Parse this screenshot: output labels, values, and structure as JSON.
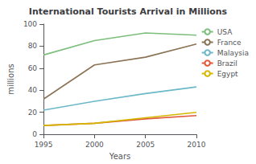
{
  "chart_data": {
    "type": "line",
    "title": "International Tourists Arrival in Millions",
    "xlabel": "Years",
    "ylabel": "millions",
    "x": [
      1995,
      2000,
      2005,
      2010
    ],
    "series": [
      {
        "name": "USA",
        "color": "#7CBE7C",
        "values": [
          72,
          85,
          92,
          90
        ]
      },
      {
        "name": "France",
        "color": "#8B7355",
        "values": [
          32,
          63,
          70,
          82
        ]
      },
      {
        "name": "Malaysia",
        "color": "#6BB8C8",
        "values": [
          22,
          30,
          37,
          43
        ]
      },
      {
        "name": "Brazil",
        "color": "#E05A3A",
        "values": [
          8,
          10,
          14,
          17
        ]
      },
      {
        "name": "Egypt",
        "color": "#D4B800",
        "values": [
          8,
          10,
          15,
          20
        ]
      }
    ],
    "xlim": [
      1995,
      2010
    ],
    "xticks": [
      1995,
      2000,
      2005,
      2010
    ],
    "ylim": [
      0,
      100
    ],
    "yticks": [
      0,
      20,
      40,
      60,
      80,
      100
    ],
    "grid": false,
    "legend": "upper right"
  }
}
